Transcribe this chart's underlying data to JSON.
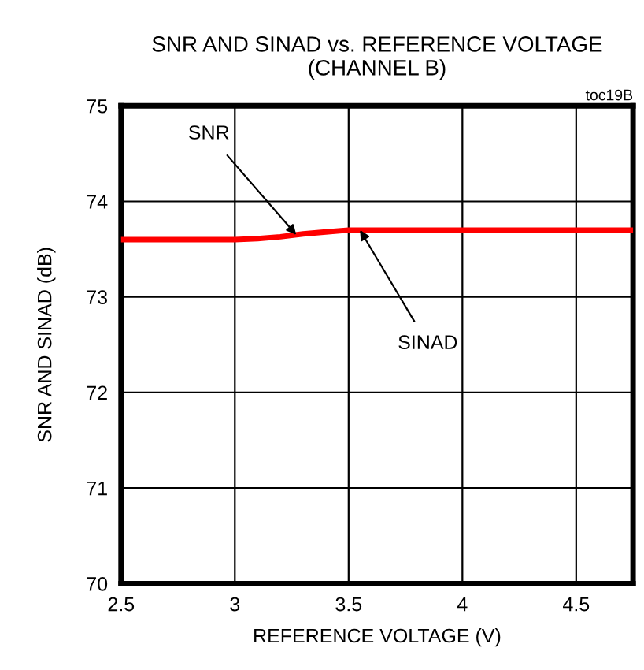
{
  "chart_data": {
    "type": "line",
    "title": "SNR AND SINAD vs. REFERENCE VOLTAGE\n(CHANNEL B)",
    "xlabel": "REFERENCE VOLTAGE (V)",
    "ylabel": "SNR AND SINAD (dB)",
    "x": [
      2.5,
      2.75,
      3.0,
      3.1,
      3.2,
      3.3,
      3.4,
      3.5,
      3.75,
      4.0,
      4.25,
      4.5,
      4.75
    ],
    "series": [
      {
        "color": "#ff0000",
        "values": [
          73.6,
          73.6,
          73.6,
          73.61,
          73.63,
          73.66,
          73.68,
          73.7,
          73.7,
          73.7,
          73.7,
          73.7,
          73.7
        ]
      }
    ],
    "xlim": [
      2.5,
      4.75
    ],
    "xticks": [
      2.5,
      3,
      3.5,
      4,
      4.5
    ],
    "ylim": [
      70,
      75
    ],
    "yticks": [
      70,
      71,
      72,
      73,
      74,
      75
    ],
    "grid": true,
    "line_style": "solid",
    "marker": "none",
    "annotations": [
      {
        "text": "SNR",
        "x": 3.27,
        "y": 73.65
      },
      {
        "text": "SINAD",
        "x": 3.55,
        "y": 73.7
      },
      "toc19B"
    ]
  }
}
